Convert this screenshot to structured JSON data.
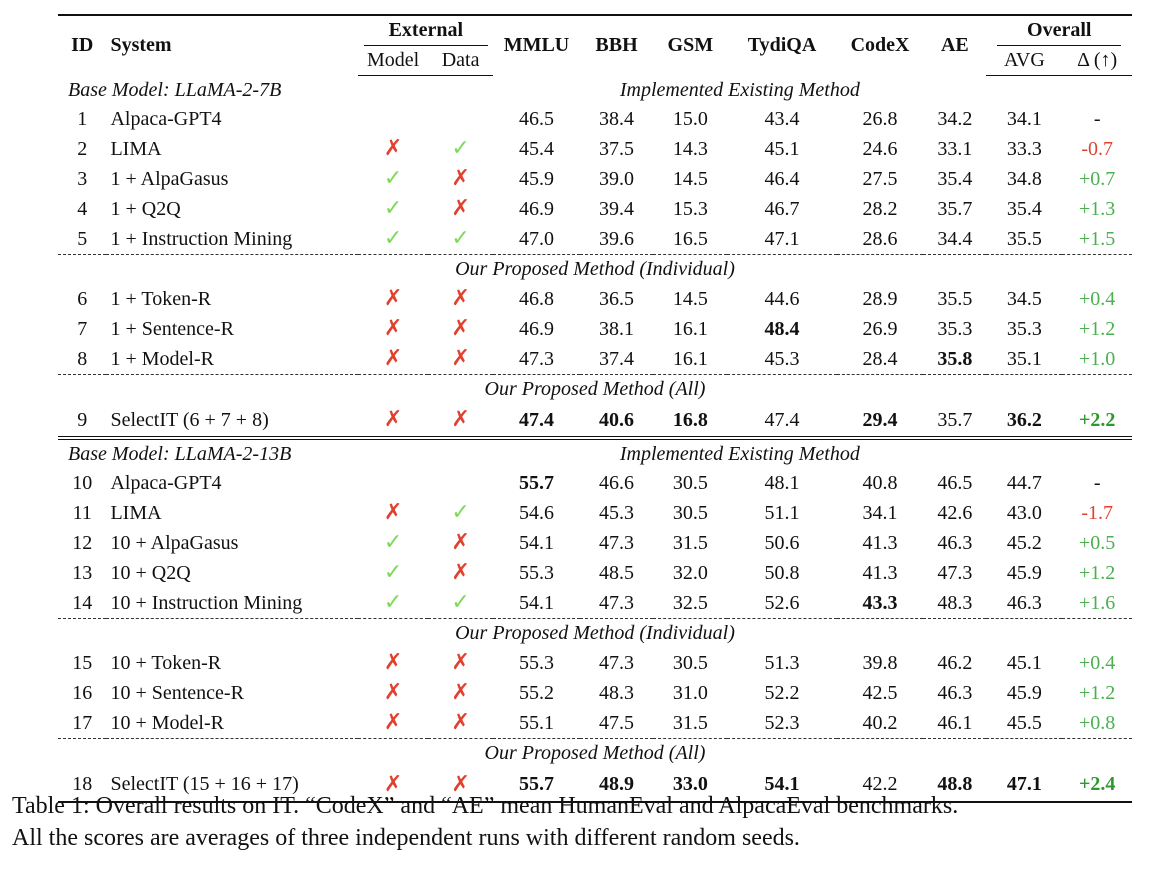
{
  "header": {
    "id": "ID",
    "system": "System",
    "external": "External",
    "model": "Model",
    "data": "Data",
    "mmlu": "MMLU",
    "bbh": "BBH",
    "gsm": "GSM",
    "tydiqa": "TydiQA",
    "codex": "CodeX",
    "ae": "AE",
    "overall": "Overall",
    "avg": "AVG",
    "delta": "Δ (↑)"
  },
  "marks": {
    "x": "✗",
    "check": "✓"
  },
  "sections": {
    "base7b": "Base Model: LLaMA-2-7B",
    "base13b": "Base Model: LLaMA-2-13B",
    "existing": "Implemented Existing Method",
    "individual": "Our Proposed Method (Individual)",
    "all": "Our Proposed Method (All)"
  },
  "rows": [
    {
      "id": "1",
      "system": "Alpaca-GPT4",
      "mmlu": "46.5",
      "bbh": "38.4",
      "gsm": "15.0",
      "tydiqa": "43.4",
      "codex": "26.8",
      "ae": "34.2",
      "avg": "34.1",
      "delta": "-"
    },
    {
      "id": "2",
      "system": "LIMA",
      "mmlu": "45.4",
      "bbh": "37.5",
      "gsm": "14.3",
      "tydiqa": "45.1",
      "codex": "24.6",
      "ae": "33.1",
      "avg": "33.3",
      "delta": "-0.7"
    },
    {
      "id": "3",
      "system": "1 + AlpaGasus",
      "mmlu": "45.9",
      "bbh": "39.0",
      "gsm": "14.5",
      "tydiqa": "46.4",
      "codex": "27.5",
      "ae": "35.4",
      "avg": "34.8",
      "delta": "+0.7"
    },
    {
      "id": "4",
      "system": "1 + Q2Q",
      "mmlu": "46.9",
      "bbh": "39.4",
      "gsm": "15.3",
      "tydiqa": "46.7",
      "codex": "28.2",
      "ae": "35.7",
      "avg": "35.4",
      "delta": "+1.3"
    },
    {
      "id": "5",
      "system": "1 + Instruction Mining",
      "mmlu": "47.0",
      "bbh": "39.6",
      "gsm": "16.5",
      "tydiqa": "47.1",
      "codex": "28.6",
      "ae": "34.4",
      "avg": "35.5",
      "delta": "+1.5"
    },
    {
      "id": "6",
      "system": "1 + Token-R",
      "mmlu": "46.8",
      "bbh": "36.5",
      "gsm": "14.5",
      "tydiqa": "44.6",
      "codex": "28.9",
      "ae": "35.5",
      "avg": "34.5",
      "delta": "+0.4"
    },
    {
      "id": "7",
      "system": "1 + Sentence-R",
      "mmlu": "46.9",
      "bbh": "38.1",
      "gsm": "16.1",
      "tydiqa": "48.4",
      "codex": "26.9",
      "ae": "35.3",
      "avg": "35.3",
      "delta": "+1.2"
    },
    {
      "id": "8",
      "system": "1 + Model-R",
      "mmlu": "47.3",
      "bbh": "37.4",
      "gsm": "16.1",
      "tydiqa": "45.3",
      "codex": "28.4",
      "ae": "35.8",
      "avg": "35.1",
      "delta": "+1.0"
    },
    {
      "id": "9",
      "system": "SelectIT (6 + 7 + 8)",
      "mmlu": "47.4",
      "bbh": "40.6",
      "gsm": "16.8",
      "tydiqa": "47.4",
      "codex": "29.4",
      "ae": "35.7",
      "avg": "36.2",
      "delta": "+2.2"
    },
    {
      "id": "10",
      "system": "Alpaca-GPT4",
      "mmlu": "55.7",
      "bbh": "46.6",
      "gsm": "30.5",
      "tydiqa": "48.1",
      "codex": "40.8",
      "ae": "46.5",
      "avg": "44.7",
      "delta": "-"
    },
    {
      "id": "11",
      "system": "LIMA",
      "mmlu": "54.6",
      "bbh": "45.3",
      "gsm": "30.5",
      "tydiqa": "51.1",
      "codex": "34.1",
      "ae": "42.6",
      "avg": "43.0",
      "delta": "-1.7"
    },
    {
      "id": "12",
      "system": "10 + AlpaGasus",
      "mmlu": "54.1",
      "bbh": "47.3",
      "gsm": "31.5",
      "tydiqa": "50.6",
      "codex": "41.3",
      "ae": "46.3",
      "avg": "45.2",
      "delta": "+0.5"
    },
    {
      "id": "13",
      "system": "10 + Q2Q",
      "mmlu": "55.3",
      "bbh": "48.5",
      "gsm": "32.0",
      "tydiqa": "50.8",
      "codex": "41.3",
      "ae": "47.3",
      "avg": "45.9",
      "delta": "+1.2"
    },
    {
      "id": "14",
      "system": "10 + Instruction Mining",
      "mmlu": "54.1",
      "bbh": "47.3",
      "gsm": "32.5",
      "tydiqa": "52.6",
      "codex": "43.3",
      "ae": "48.3",
      "avg": "46.3",
      "delta": "+1.6"
    },
    {
      "id": "15",
      "system": "10 + Token-R",
      "mmlu": "55.3",
      "bbh": "47.3",
      "gsm": "30.5",
      "tydiqa": "51.3",
      "codex": "39.8",
      "ae": "46.2",
      "avg": "45.1",
      "delta": "+0.4"
    },
    {
      "id": "16",
      "system": "10 + Sentence-R",
      "mmlu": "55.2",
      "bbh": "48.3",
      "gsm": "31.0",
      "tydiqa": "52.2",
      "codex": "42.5",
      "ae": "46.3",
      "avg": "45.9",
      "delta": "+1.2"
    },
    {
      "id": "17",
      "system": "10 + Model-R",
      "mmlu": "55.1",
      "bbh": "47.5",
      "gsm": "31.5",
      "tydiqa": "52.3",
      "codex": "40.2",
      "ae": "46.1",
      "avg": "45.5",
      "delta": "+0.8"
    },
    {
      "id": "18",
      "system": "SelectIT (15 + 16 + 17)",
      "mmlu": "55.7",
      "bbh": "48.9",
      "gsm": "33.0",
      "tydiqa": "54.1",
      "codex": "42.2",
      "ae": "48.8",
      "avg": "47.1",
      "delta": "+2.4"
    }
  ],
  "caption": {
    "line1": "Table 1: Overall results on IT. “CodeX” and “AE” mean HumanEval and AlpacaEval benchmarks.",
    "line2": "All the scores are averages of three independent runs with different random seeds."
  }
}
